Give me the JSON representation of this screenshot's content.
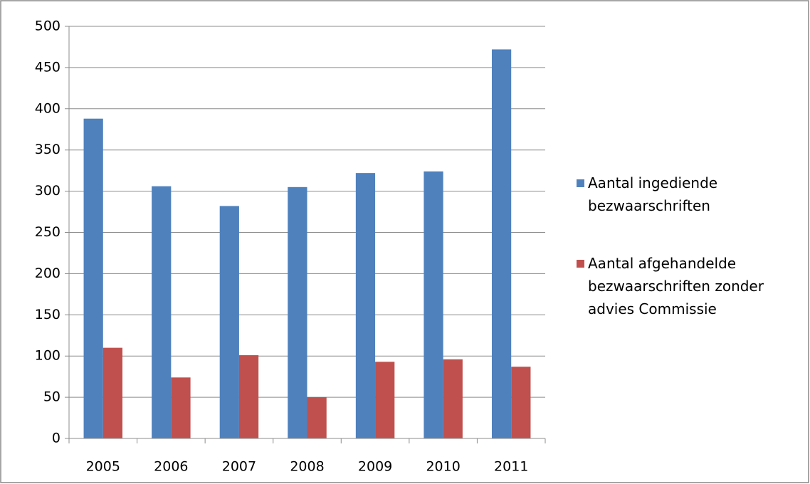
{
  "chart_data": {
    "type": "bar",
    "categories": [
      "2005",
      "2006",
      "2007",
      "2008",
      "2009",
      "2010",
      "2011"
    ],
    "series": [
      {
        "name": "Aantal ingediende bezwaarschriften",
        "color": "#4f81bd",
        "values": [
          388,
          306,
          282,
          305,
          322,
          324,
          472
        ]
      },
      {
        "name": "Aantal afgehandelde bezwaarschriften zonder advies Commissie",
        "color": "#c0504d",
        "values": [
          110,
          74,
          101,
          50,
          93,
          96,
          87
        ]
      }
    ],
    "ylim": [
      0,
      500
    ],
    "yticks": [
      0,
      50,
      100,
      150,
      200,
      250,
      300,
      350,
      400,
      450,
      500
    ],
    "grid": true,
    "legend": "right"
  }
}
